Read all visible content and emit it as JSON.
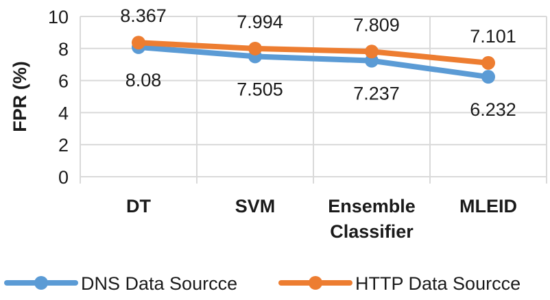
{
  "chart_data": {
    "type": "line",
    "title": "",
    "xlabel": "",
    "ylabel": "FPR (%)",
    "ylim": [
      0,
      10
    ],
    "yticks": [
      "0",
      "2",
      "4",
      "6",
      "8",
      "10"
    ],
    "categories": [
      [
        "DT"
      ],
      [
        "SVM"
      ],
      [
        "Ensemble",
        "Classifier"
      ],
      [
        "MLEID"
      ]
    ],
    "grid": true,
    "legend_position": "bottom",
    "series": [
      {
        "name": "DNS Data Sourcce",
        "color": "#5b9bd5",
        "values": [
          8.08,
          7.505,
          7.237,
          6.232
        ],
        "labels": [
          "8.08",
          "7.505",
          "7.237",
          "6.232"
        ],
        "label_position": "below"
      },
      {
        "name": "HTTP Data Sourcce",
        "color": "#ed7d31",
        "values": [
          8.367,
          7.994,
          7.809,
          7.101
        ],
        "labels": [
          "8.367",
          "7.994",
          "7.809",
          "7.101"
        ],
        "label_position": "above"
      }
    ]
  }
}
